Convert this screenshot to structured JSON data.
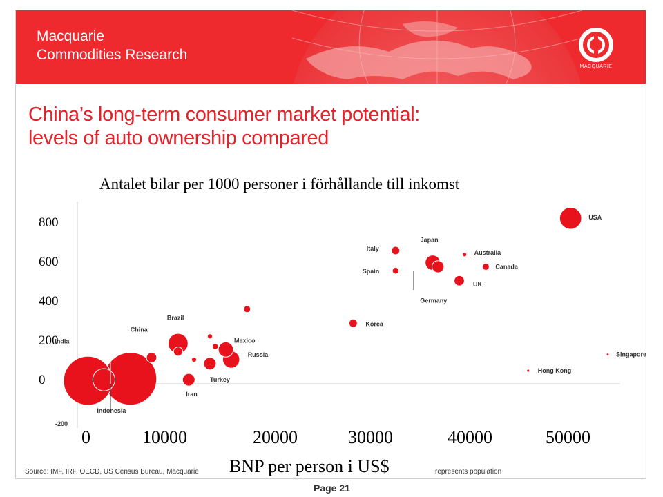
{
  "slide": {
    "brand_line1": "Macquarie",
    "brand_line2": "Commodities Research",
    "logo_text": "MACQUARIE",
    "headline_line1": "China’s long-term consumer market potential:",
    "headline_line2": "levels of auto ownership compared",
    "source_left": "Source: IMF, IRF, OECD, US Census Bureau, Macquarie",
    "source_right": "represents population",
    "page_label": "Page 21",
    "colors": {
      "red": "#e4222a",
      "header_red": "#ee2a2f",
      "bubble": "#e8121c"
    }
  },
  "chart_data": {
    "type": "scatter",
    "title": "Antalet bilar per 1000 personer i förhållande till inkomst",
    "xlabel": "BNP per person i US$",
    "ylabel": "",
    "x_ticks": [
      "0",
      "10000",
      "20000",
      "30000",
      "40000",
      "50000"
    ],
    "y_ticks": [
      "800",
      "600",
      "400",
      "200",
      "0"
    ],
    "y_extra_tick": "-200",
    "xlim": [
      0,
      50000
    ],
    "ylim": [
      -200,
      850
    ],
    "grid": false,
    "points": [
      {
        "label": "India",
        "x": 1000,
        "y": 15,
        "size": 1150
      },
      {
        "label": "China",
        "x": 5000,
        "y": 25,
        "size": 1330
      },
      {
        "label": "Indonesia",
        "x": 2500,
        "y": 20,
        "size": 240
      },
      {
        "label": "Brazil",
        "x": 9500,
        "y": 200,
        "size": 190
      },
      {
        "label": "Iran",
        "x": 10500,
        "y": 20,
        "size": 75
      },
      {
        "label": "Mexico",
        "x": 14000,
        "y": 170,
        "size": 110
      },
      {
        "label": "Russia",
        "x": 14500,
        "y": 120,
        "size": 140
      },
      {
        "label": "Turkey",
        "x": 12500,
        "y": 100,
        "size": 75
      },
      {
        "label": "",
        "x": 7000,
        "y": 130,
        "size": 50
      },
      {
        "label": "",
        "x": 9500,
        "y": 160,
        "size": 40
      },
      {
        "label": "",
        "x": 11000,
        "y": 120,
        "size": 10
      },
      {
        "label": "",
        "x": 12500,
        "y": 235,
        "size": 10
      },
      {
        "label": "",
        "x": 13000,
        "y": 185,
        "size": 15
      },
      {
        "label": "",
        "x": 16000,
        "y": 370,
        "size": 20
      },
      {
        "label": "Korea",
        "x": 26000,
        "y": 300,
        "size": 30
      },
      {
        "label": "Italy",
        "x": 30000,
        "y": 660,
        "size": 30
      },
      {
        "label": "Spain",
        "x": 30000,
        "y": 560,
        "size": 18
      },
      {
        "label": "Japan",
        "x": 33500,
        "y": 600,
        "size": 110
      },
      {
        "label": "Germany",
        "x": 34000,
        "y": 580,
        "size": 70
      },
      {
        "label": "UK",
        "x": 36000,
        "y": 510,
        "size": 50
      },
      {
        "label": "Australia",
        "x": 36500,
        "y": 640,
        "size": 7
      },
      {
        "label": "Canada",
        "x": 38500,
        "y": 580,
        "size": 20
      },
      {
        "label": "USA",
        "x": 46500,
        "y": 820,
        "size": 230
      },
      {
        "label": "Hong Kong",
        "x": 42500,
        "y": 65,
        "size": 3
      },
      {
        "label": "Singapore",
        "x": 50000,
        "y": 145,
        "size": 2
      }
    ]
  }
}
